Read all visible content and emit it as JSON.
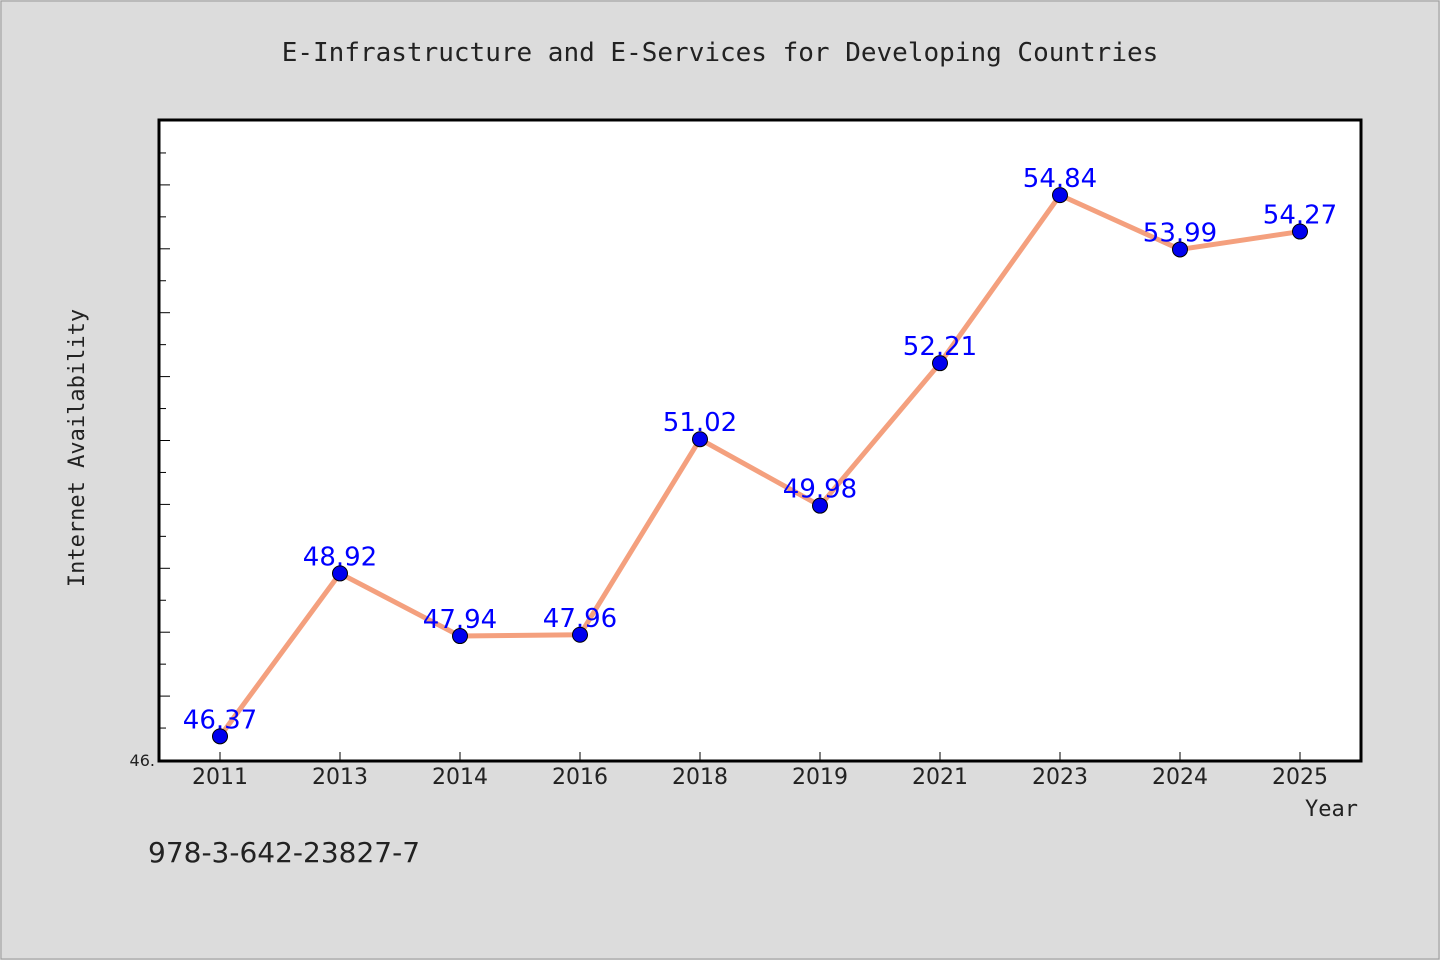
{
  "chart_data": {
    "type": "line",
    "title": "E-Infrastructure and E-Services for Developing Countries",
    "xlabel": "Year",
    "ylabel": "Internet Availability",
    "categories": [
      "2011",
      "2013",
      "2014",
      "2016",
      "2018",
      "2019",
      "2021",
      "2023",
      "2024",
      "2025"
    ],
    "values": [
      46.37,
      48.92,
      47.94,
      47.96,
      51.02,
      49.98,
      52.21,
      54.84,
      53.99,
      54.27
    ],
    "data_labels": [
      "46.37",
      "48.92",
      "47.94",
      "47.96",
      "51.02",
      "49.98",
      "52.21",
      "54.84",
      "53.99",
      "54.27"
    ],
    "y_tick_label": "46.",
    "ylim": [
      46.0,
      56.0
    ],
    "grid": false,
    "legend": "none",
    "colors": {
      "line": "#f4a07e",
      "marker": "#0000ee",
      "label": "#0000ff",
      "plot_bg": "#ffffff",
      "page_bg": "#dcdcdc"
    }
  },
  "footnote": "978-3-642-23827-7"
}
